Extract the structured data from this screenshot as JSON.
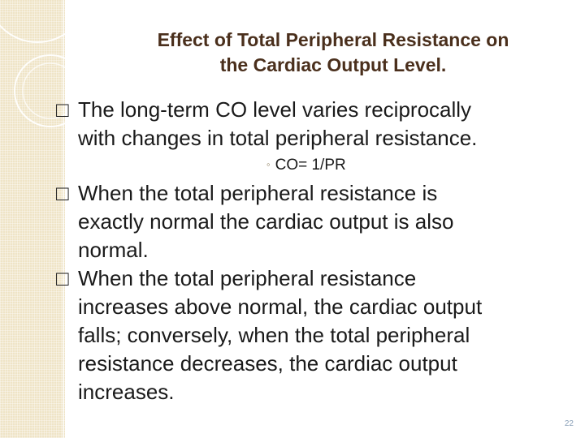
{
  "slide": {
    "title_line1": "Effect of Total Peripheral Resistance on",
    "title_line2": "the Cardiac Output Level.",
    "bullet_marker": "□",
    "bullets": [
      {
        "line1": "The long-term CO level varies reciprocally",
        "line2": "with changes in total peripheral resistance."
      },
      {
        "line1": "When the total peripheral resistance is",
        "line2": "exactly normal the cardiac output is also",
        "line3": "normal."
      },
      {
        "line1": "When the total peripheral resistance",
        "line2": "increases above normal, the cardiac output",
        "line3": "falls; conversely,  when the total peripheral",
        "line4": "resistance decreases, the cardiac output",
        "line5": "increases."
      }
    ],
    "sub_bullet_marker": "◦",
    "sub_bullet": "CO= 1/PR",
    "page_number": "22"
  },
  "colors": {
    "title": "#4a2f1c",
    "body_text": "#1a1a1a",
    "side_band": "#efe4c6",
    "page_number": "#8aa0b8"
  }
}
